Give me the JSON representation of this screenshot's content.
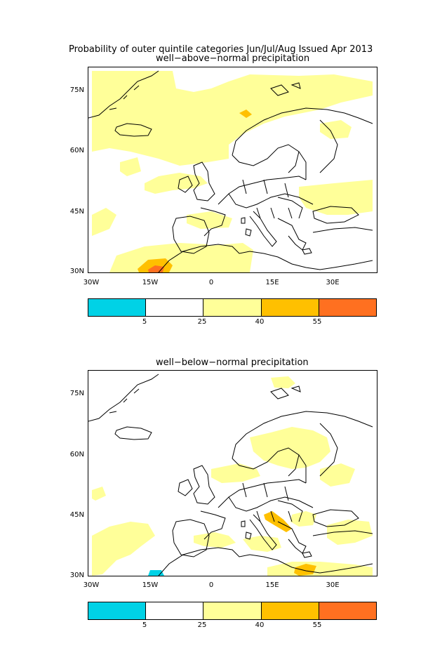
{
  "title": "Probability of outer quintile categories Jun/Jul/Aug Issued Apr 2013",
  "panels": [
    {
      "subtitle": "well−above−normal precipitation",
      "y_ticks": [
        "75N",
        "60N",
        "45N",
        "30N"
      ],
      "x_ticks": [
        "30W",
        "15W",
        "0",
        "15E",
        "30E"
      ],
      "colorbar_labels": [
        "5",
        "25",
        "40",
        "55"
      ]
    },
    {
      "subtitle": "well−below−normal precipitation",
      "y_ticks": [
        "75N",
        "60N",
        "45N",
        "30N"
      ],
      "x_ticks": [
        "30W",
        "15W",
        "0",
        "15E",
        "30E"
      ],
      "colorbar_labels": [
        "5",
        "25",
        "40",
        "55"
      ]
    }
  ],
  "colors": {
    "below_5": "#00d2e6",
    "5_25": "#ffffff",
    "25_40": "#ffff99",
    "40_55": "#ffc000",
    "above_55": "#ff7020",
    "coast": "#000000"
  },
  "legend_categories": [
    "<5",
    "5-25",
    "25-40",
    "40-55",
    ">55"
  ]
}
